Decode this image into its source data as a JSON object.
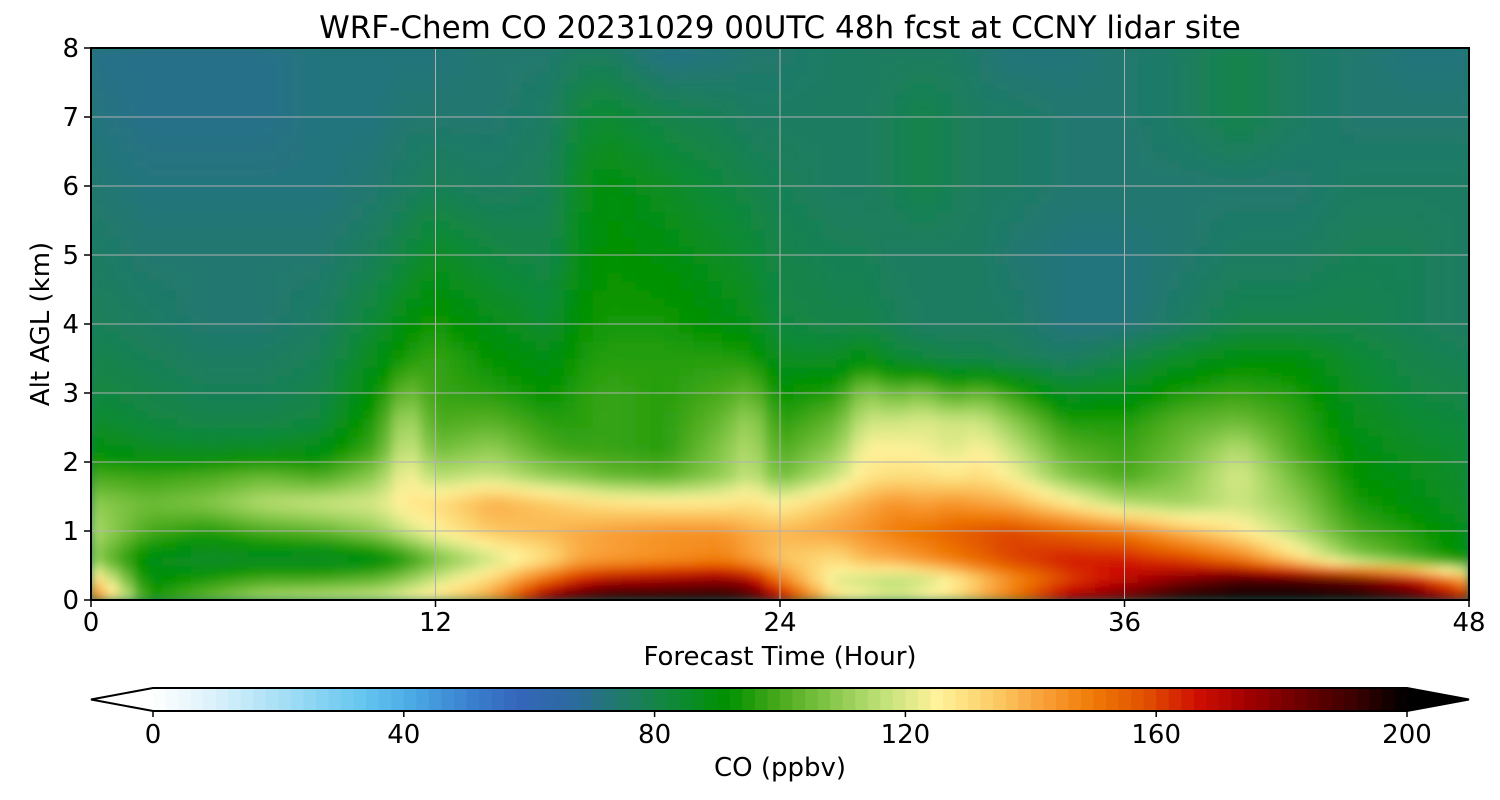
{
  "chart_data": {
    "type": "heatmap",
    "title": "WRF-Chem CO  20231029 00UTC 48h fcst at CCNY lidar site",
    "xlabel": "Forecast Time (Hour)",
    "ylabel": "Alt AGL (km)",
    "xlim": [
      0,
      48
    ],
    "ylim": [
      0,
      8
    ],
    "x_ticks": [
      0,
      12,
      24,
      36,
      48
    ],
    "y_ticks": [
      0,
      1,
      2,
      3,
      4,
      5,
      6,
      7,
      8
    ],
    "grid": true,
    "colorbar": {
      "label": "CO  (ppbv)",
      "range": [
        0,
        200
      ],
      "ticks": [
        0,
        40,
        80,
        120,
        160,
        200
      ],
      "extend": "both",
      "colors": [
        "#ffffff",
        "#e1f3fb",
        "#b9e6f7",
        "#8fd6f3",
        "#66c6ef",
        "#4aa8e4",
        "#3b82d1",
        "#3466bb",
        "#2d6aa0",
        "#1f7a68",
        "#0e8a36",
        "#009100",
        "#4aaa1c",
        "#86c84a",
        "#c3e27a",
        "#fff29a",
        "#fcd06b",
        "#f9a13a",
        "#f07a06",
        "#e05000",
        "#cf0e00",
        "#9e0000",
        "#6a0000",
        "#3a0000",
        "#000000"
      ]
    },
    "field": {
      "description_units": "CO mixing ratio in ppbv",
      "hours": [
        0,
        2,
        4,
        6,
        8,
        10,
        11,
        12,
        14,
        16,
        17,
        18,
        20,
        22,
        23,
        24,
        26,
        27,
        28,
        29,
        30,
        31,
        32,
        34,
        36,
        38,
        40,
        42,
        44,
        46,
        48
      ],
      "altitudes_km": [
        0,
        0.3,
        0.6,
        1.0,
        1.4,
        1.8,
        2.2,
        2.6,
        3.0,
        3.5,
        4.0,
        5.0,
        6.0,
        7.0,
        8.0
      ],
      "values": [
        [
          158,
          95,
          105,
          115,
          118,
          120,
          125,
          130,
          145,
          185,
          195,
          200,
          200,
          200,
          195,
          175,
          130,
          125,
          120,
          125,
          130,
          140,
          150,
          175,
          185,
          200,
          200,
          200,
          200,
          195,
          175
        ],
        [
          135,
          90,
          95,
          100,
          100,
          104,
          110,
          118,
          132,
          155,
          165,
          172,
          175,
          178,
          172,
          150,
          120,
          118,
          115,
          118,
          125,
          135,
          145,
          160,
          170,
          180,
          190,
          190,
          185,
          170,
          140
        ],
        [
          110,
          88,
          84,
          85,
          84,
          88,
          95,
          105,
          118,
          130,
          140,
          142,
          145,
          148,
          142,
          135,
          130,
          138,
          140,
          145,
          150,
          155,
          160,
          165,
          165,
          160,
          150,
          130,
          110,
          100,
          90
        ],
        [
          115,
          100,
          95,
          100,
          103,
          110,
          118,
          125,
          135,
          138,
          140,
          142,
          145,
          145,
          140,
          138,
          142,
          145,
          150,
          152,
          155,
          158,
          160,
          155,
          150,
          138,
          128,
          115,
          100,
          95,
          88
        ],
        [
          110,
          105,
          108,
          115,
          118,
          120,
          128,
          130,
          140,
          135,
          132,
          130,
          128,
          128,
          130,
          125,
          135,
          140,
          145,
          142,
          145,
          142,
          140,
          128,
          115,
          112,
          118,
          110,
          95,
          90,
          85
        ],
        [
          100,
          98,
          100,
          104,
          100,
          110,
          125,
          115,
          118,
          110,
          108,
          104,
          102,
          110,
          118,
          105,
          118,
          128,
          130,
          130,
          128,
          130,
          125,
          108,
          100,
          108,
          120,
          105,
          92,
          88,
          84
        ],
        [
          90,
          86,
          85,
          86,
          88,
          100,
          120,
          105,
          110,
          100,
          98,
          98,
          96,
          108,
          115,
          100,
          110,
          125,
          125,
          124,
          120,
          125,
          118,
          102,
          98,
          105,
          115,
          100,
          90,
          86,
          84
        ],
        [
          85,
          82,
          80,
          80,
          82,
          96,
          115,
          100,
          102,
          96,
          96,
          98,
          96,
          104,
          112,
          96,
          104,
          118,
          118,
          120,
          118,
          118,
          110,
          95,
          95,
          102,
          105,
          98,
          88,
          84,
          82
        ],
        [
          82,
          80,
          78,
          78,
          80,
          92,
          106,
          98,
          96,
          92,
          96,
          98,
          96,
          100,
          104,
          92,
          96,
          110,
          104,
          108,
          100,
          104,
          98,
          86,
          88,
          95,
          98,
          95,
          86,
          82,
          80
        ],
        [
          80,
          78,
          76,
          76,
          78,
          88,
          95,
          98,
          92,
          88,
          94,
          96,
          96,
          96,
          95,
          86,
          86,
          90,
          84,
          82,
          80,
          80,
          78,
          76,
          80,
          86,
          90,
          90,
          84,
          80,
          78
        ],
        [
          78,
          76,
          74,
          74,
          76,
          84,
          90,
          94,
          88,
          84,
          92,
          94,
          94,
          90,
          88,
          82,
          80,
          80,
          78,
          76,
          76,
          76,
          76,
          72,
          72,
          76,
          80,
          80,
          80,
          78,
          76
        ],
        [
          76,
          74,
          74,
          74,
          74,
          78,
          82,
          86,
          82,
          80,
          88,
          92,
          90,
          86,
          84,
          80,
          78,
          78,
          76,
          76,
          76,
          76,
          74,
          72,
          72,
          74,
          76,
          76,
          78,
          78,
          76
        ],
        [
          74,
          72,
          72,
          72,
          72,
          74,
          76,
          78,
          76,
          78,
          86,
          90,
          86,
          82,
          80,
          78,
          76,
          76,
          78,
          80,
          78,
          76,
          76,
          74,
          74,
          74,
          74,
          74,
          76,
          76,
          76
        ],
        [
          72,
          70,
          70,
          70,
          72,
          72,
          74,
          74,
          74,
          76,
          82,
          84,
          80,
          78,
          76,
          76,
          76,
          76,
          78,
          80,
          78,
          76,
          76,
          74,
          74,
          76,
          80,
          76,
          74,
          74,
          74
        ],
        [
          70,
          70,
          70,
          70,
          72,
          72,
          72,
          72,
          74,
          74,
          76,
          76,
          70,
          72,
          74,
          74,
          76,
          76,
          76,
          76,
          76,
          74,
          72,
          72,
          74,
          76,
          80,
          76,
          74,
          72,
          72
        ]
      ]
    }
  }
}
